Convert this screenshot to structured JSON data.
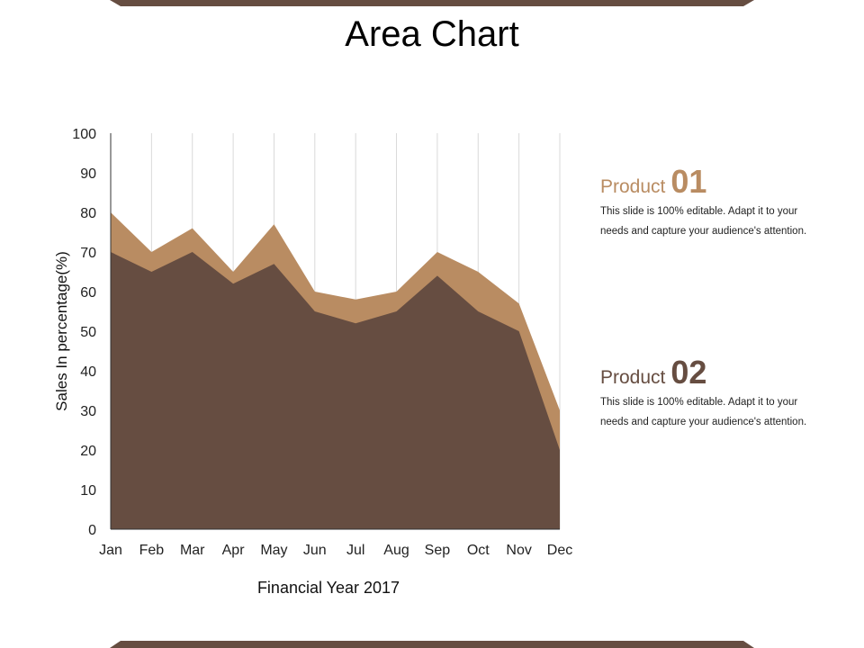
{
  "page": {
    "title": "Area Chart"
  },
  "colors": {
    "dark": "#664d41",
    "light": "#b98c62",
    "grid": "#d9d9d9",
    "axis": "#333333"
  },
  "chart_data": {
    "type": "area",
    "title": "Area Chart",
    "xlabel": "Financial Year 2017",
    "ylabel": "Sales In percentage(%)",
    "categories": [
      "Jan",
      "Feb",
      "Mar",
      "Apr",
      "May",
      "Jun",
      "Jul",
      "Aug",
      "Sep",
      "Oct",
      "Nov",
      "Dec"
    ],
    "ylim": [
      0,
      100
    ],
    "yticks": [
      0,
      10,
      20,
      30,
      40,
      50,
      60,
      70,
      80,
      90,
      100
    ],
    "grid": "vertical",
    "stacked": false,
    "series": [
      {
        "name": "Product 01",
        "values": [
          80,
          70,
          76,
          65,
          77,
          60,
          58,
          60,
          70,
          65,
          57,
          30
        ]
      },
      {
        "name": "Product 02",
        "values": [
          70,
          65,
          70,
          62,
          67,
          55,
          52,
          55,
          64,
          55,
          50,
          20
        ]
      }
    ]
  },
  "legend": {
    "product1": {
      "word": "Product",
      "number": "01",
      "line1": "This slide is 100% editable. Adapt it to your",
      "line2": "needs and capture your audience's attention."
    },
    "product2": {
      "word": "Product",
      "number": "02",
      "line1": "This slide is 100% editable. Adapt it to your",
      "line2": "needs and capture your audience's attention."
    }
  }
}
